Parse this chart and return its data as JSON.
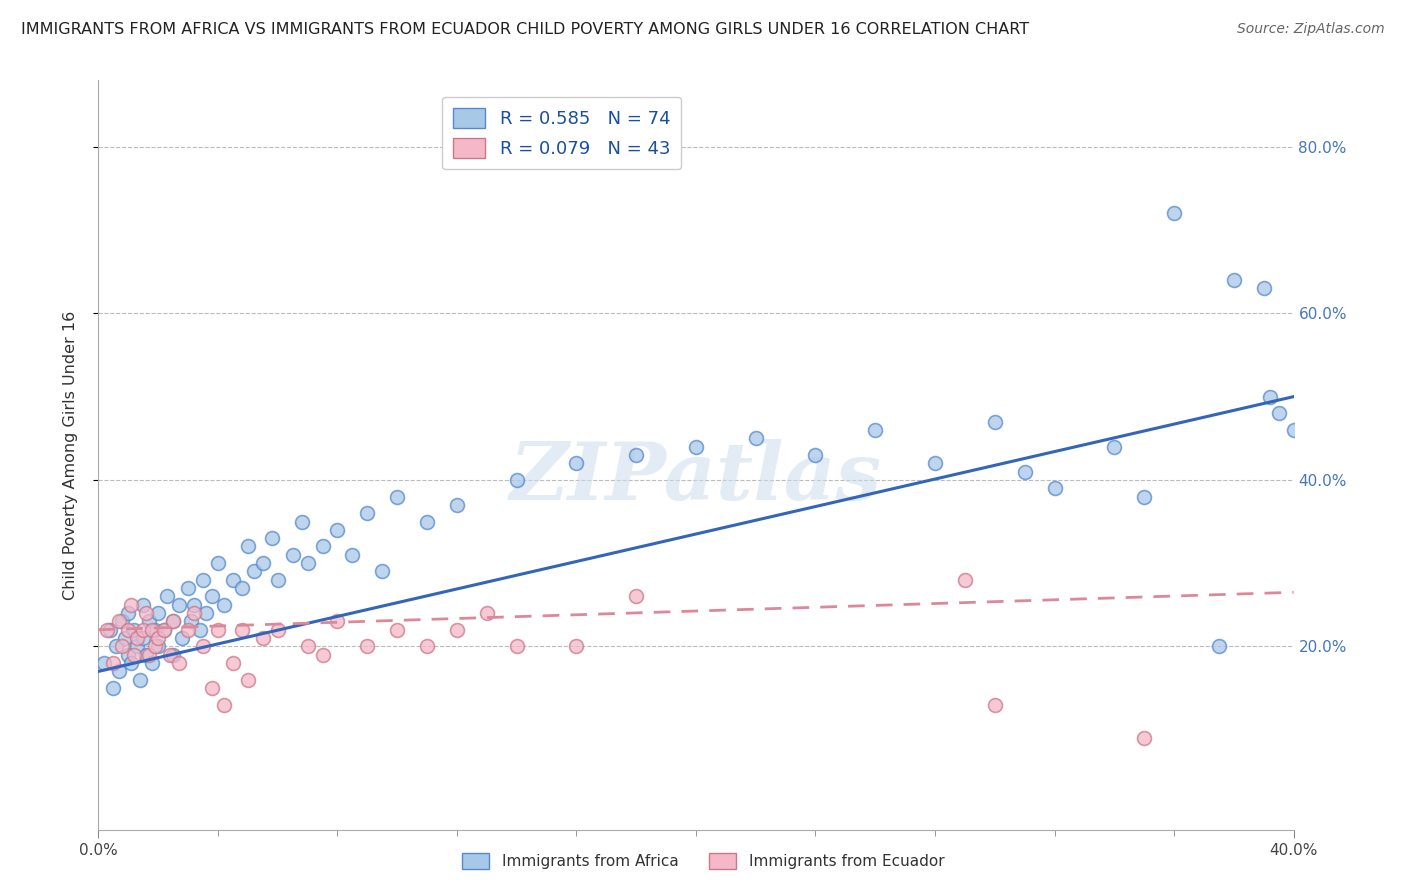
{
  "title": "IMMIGRANTS FROM AFRICA VS IMMIGRANTS FROM ECUADOR CHILD POVERTY AMONG GIRLS UNDER 16 CORRELATION CHART",
  "source": "Source: ZipAtlas.com",
  "ylabel": "Child Poverty Among Girls Under 16",
  "xlim": [
    0.0,
    0.4
  ],
  "ylim": [
    -0.02,
    0.88
  ],
  "africa_R": 0.585,
  "africa_N": 74,
  "ecuador_R": 0.079,
  "ecuador_N": 43,
  "africa_color": "#a8c8e8",
  "ecuador_color": "#f4b8c8",
  "africa_edge_color": "#5588cc",
  "ecuador_edge_color": "#cc7788",
  "africa_line_color": "#3366bb",
  "ecuador_line_color": "#dd8899",
  "watermark": "ZIPatlas",
  "africa_scatter_x": [
    0.002,
    0.004,
    0.005,
    0.006,
    0.007,
    0.008,
    0.009,
    0.01,
    0.01,
    0.011,
    0.012,
    0.013,
    0.014,
    0.015,
    0.015,
    0.016,
    0.017,
    0.018,
    0.019,
    0.02,
    0.02,
    0.022,
    0.023,
    0.025,
    0.025,
    0.027,
    0.028,
    0.03,
    0.031,
    0.032,
    0.034,
    0.035,
    0.036,
    0.038,
    0.04,
    0.042,
    0.045,
    0.048,
    0.05,
    0.052,
    0.055,
    0.058,
    0.06,
    0.065,
    0.068,
    0.07,
    0.075,
    0.08,
    0.085,
    0.09,
    0.095,
    0.1,
    0.11,
    0.12,
    0.14,
    0.16,
    0.18,
    0.2,
    0.22,
    0.24,
    0.26,
    0.28,
    0.3,
    0.31,
    0.32,
    0.34,
    0.35,
    0.36,
    0.375,
    0.38,
    0.39,
    0.392,
    0.395,
    0.4
  ],
  "africa_scatter_y": [
    0.18,
    0.22,
    0.15,
    0.2,
    0.17,
    0.23,
    0.21,
    0.19,
    0.24,
    0.18,
    0.22,
    0.2,
    0.16,
    0.21,
    0.25,
    0.19,
    0.23,
    0.18,
    0.22,
    0.2,
    0.24,
    0.22,
    0.26,
    0.23,
    0.19,
    0.25,
    0.21,
    0.27,
    0.23,
    0.25,
    0.22,
    0.28,
    0.24,
    0.26,
    0.3,
    0.25,
    0.28,
    0.27,
    0.32,
    0.29,
    0.3,
    0.33,
    0.28,
    0.31,
    0.35,
    0.3,
    0.32,
    0.34,
    0.31,
    0.36,
    0.29,
    0.38,
    0.35,
    0.37,
    0.4,
    0.42,
    0.43,
    0.44,
    0.45,
    0.43,
    0.46,
    0.42,
    0.47,
    0.41,
    0.39,
    0.44,
    0.38,
    0.72,
    0.2,
    0.64,
    0.63,
    0.5,
    0.48,
    0.46
  ],
  "ecuador_scatter_x": [
    0.003,
    0.005,
    0.007,
    0.008,
    0.01,
    0.011,
    0.012,
    0.013,
    0.015,
    0.016,
    0.017,
    0.018,
    0.019,
    0.02,
    0.022,
    0.024,
    0.025,
    0.027,
    0.03,
    0.032,
    0.035,
    0.038,
    0.04,
    0.042,
    0.045,
    0.048,
    0.05,
    0.055,
    0.06,
    0.07,
    0.075,
    0.08,
    0.09,
    0.1,
    0.11,
    0.12,
    0.13,
    0.14,
    0.16,
    0.18,
    0.29,
    0.3,
    0.35
  ],
  "ecuador_scatter_y": [
    0.22,
    0.18,
    0.23,
    0.2,
    0.22,
    0.25,
    0.19,
    0.21,
    0.22,
    0.24,
    0.19,
    0.22,
    0.2,
    0.21,
    0.22,
    0.19,
    0.23,
    0.18,
    0.22,
    0.24,
    0.2,
    0.15,
    0.22,
    0.13,
    0.18,
    0.22,
    0.16,
    0.21,
    0.22,
    0.2,
    0.19,
    0.23,
    0.2,
    0.22,
    0.2,
    0.22,
    0.24,
    0.2,
    0.2,
    0.26,
    0.28,
    0.13,
    0.09
  ]
}
